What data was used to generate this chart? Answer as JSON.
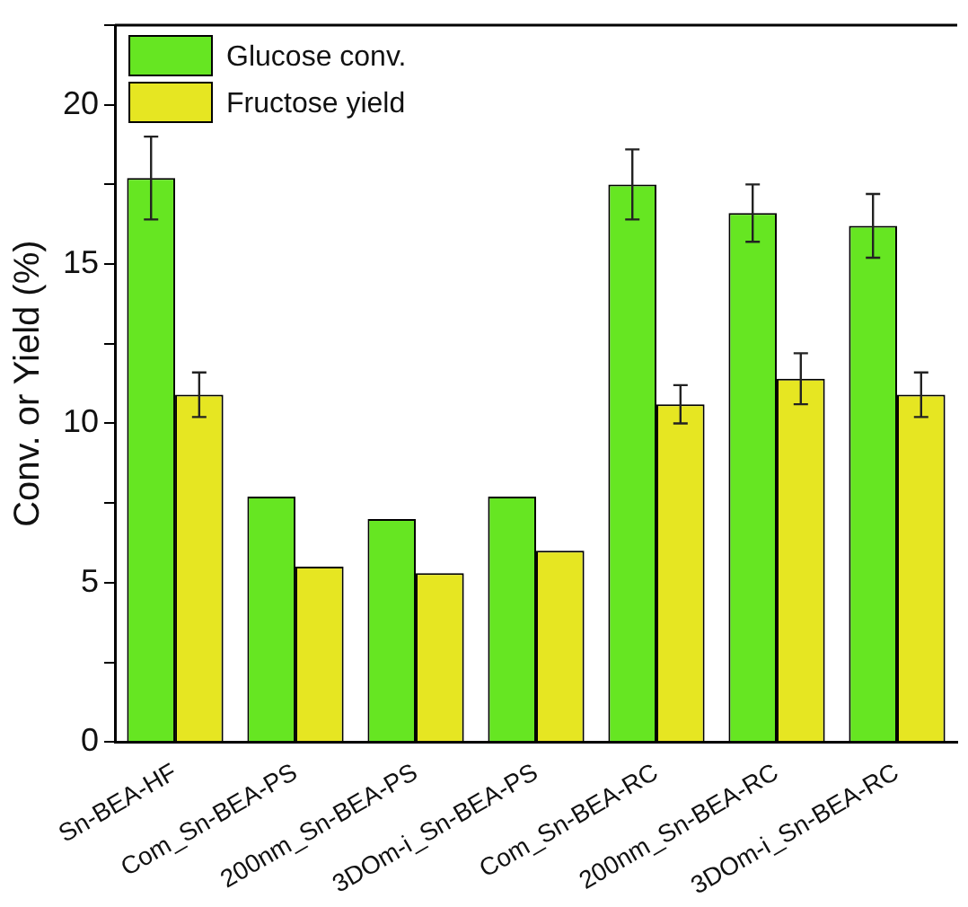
{
  "chart_data": {
    "type": "bar",
    "ylabel": "Conv. or Yield (%)",
    "categories": [
      "Sn-BEA-HF",
      "Com_Sn-BEA-PS",
      "200nm_Sn-BEA-PS",
      "3DOm-i_Sn-BEA-PS",
      "Com_Sn-BEA-RC",
      "200nm_Sn-BEA-RC",
      "3DOm-i_Sn-BEA-RC"
    ],
    "series": [
      {
        "name": "Glucose conv.",
        "color": "#66e622",
        "values": [
          17.7,
          7.7,
          7.0,
          7.7,
          17.5,
          16.6,
          16.2
        ],
        "errors": [
          1.3,
          null,
          null,
          null,
          1.1,
          0.9,
          1.0
        ]
      },
      {
        "name": "Fructose yield",
        "color": "#e6e622",
        "values": [
          10.9,
          5.5,
          5.3,
          6.0,
          10.6,
          11.4,
          10.9
        ],
        "errors": [
          0.7,
          null,
          null,
          null,
          0.6,
          0.8,
          0.7
        ]
      }
    ],
    "ylim": [
      0,
      22.5
    ],
    "yticks": [
      0,
      {
        "value": 2.5,
        "label": null
      },
      5,
      {
        "value": 7.5,
        "label": null
      },
      10,
      {
        "value": 12.5,
        "label": null
      },
      15,
      {
        "value": 17.5,
        "label": null
      },
      20,
      {
        "value": 22.5,
        "label": null
      }
    ],
    "grid": false,
    "legend": "top left"
  }
}
